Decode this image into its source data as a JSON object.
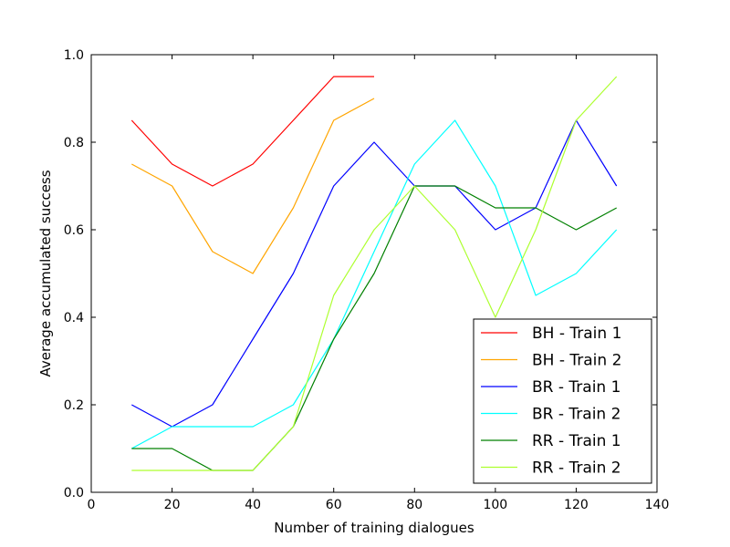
{
  "chart_data": {
    "type": "line",
    "title": "",
    "xlabel": "Number of training dialogues",
    "ylabel": "Average accumulated success",
    "xlim": [
      0,
      140
    ],
    "ylim": [
      0,
      1.0
    ],
    "x_ticks": [
      0,
      20,
      40,
      60,
      80,
      100,
      120,
      140
    ],
    "x_tick_labels": [
      "0",
      "20",
      "40",
      "60",
      "80",
      "100",
      "120",
      "140"
    ],
    "y_ticks": [
      0,
      0.2,
      0.4,
      0.6,
      0.8,
      1.0
    ],
    "y_tick_labels": [
      "0.0",
      "0.2",
      "0.4",
      "0.6",
      "0.8",
      "1.0"
    ],
    "grid": false,
    "legend_position": "lower-right",
    "series": [
      {
        "name": "BH - Train 1",
        "color": "#ff0000",
        "x": [
          10,
          20,
          30,
          40,
          50,
          60,
          70
        ],
        "values": [
          0.85,
          0.75,
          0.7,
          0.75,
          0.85,
          0.95,
          0.95
        ]
      },
      {
        "name": "BH - Train 2",
        "color": "#ffa500",
        "x": [
          10,
          20,
          30,
          40,
          50,
          60,
          70
        ],
        "values": [
          0.75,
          0.7,
          0.55,
          0.5,
          0.65,
          0.85,
          0.9
        ]
      },
      {
        "name": "BR - Train 1",
        "color": "#0000ff",
        "x": [
          10,
          20,
          30,
          40,
          50,
          60,
          70,
          80,
          90,
          100,
          110,
          120,
          130
        ],
        "values": [
          0.2,
          0.15,
          0.2,
          0.35,
          0.5,
          0.7,
          0.8,
          0.7,
          0.7,
          0.6,
          0.65,
          0.85,
          0.7
        ]
      },
      {
        "name": "BR - Train 2",
        "color": "#00ffff",
        "x": [
          10,
          20,
          30,
          40,
          50,
          60,
          70,
          80,
          90,
          100,
          110,
          120,
          130
        ],
        "values": [
          0.1,
          0.15,
          0.15,
          0.15,
          0.2,
          0.35,
          0.55,
          0.75,
          0.85,
          0.7,
          0.45,
          0.5,
          0.6
        ]
      },
      {
        "name": "RR - Train 1",
        "color": "#008000",
        "x": [
          10,
          20,
          30,
          40,
          50,
          60,
          70,
          80,
          90,
          100,
          110,
          120,
          130
        ],
        "values": [
          0.1,
          0.1,
          0.05,
          0.05,
          0.15,
          0.35,
          0.5,
          0.7,
          0.7,
          0.65,
          0.65,
          0.6,
          0.65
        ]
      },
      {
        "name": "RR - Train 2",
        "color": "#adff2f",
        "x": [
          10,
          20,
          30,
          40,
          50,
          60,
          70,
          80,
          90,
          100,
          110,
          120,
          130
        ],
        "values": [
          0.05,
          0.05,
          0.05,
          0.05,
          0.15,
          0.45,
          0.6,
          0.7,
          0.6,
          0.4,
          0.6,
          0.85,
          0.95
        ]
      }
    ]
  }
}
